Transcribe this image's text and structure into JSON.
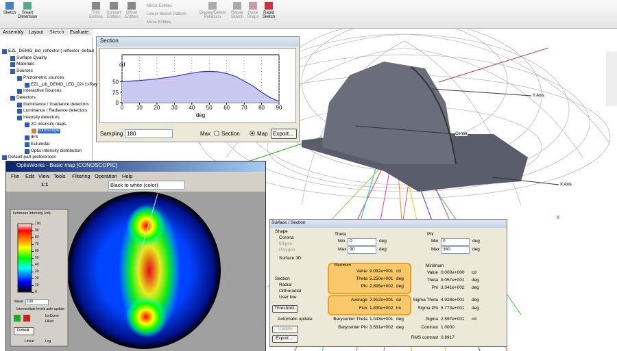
{
  "ribbon": {
    "buttons": [
      "Sketch",
      "Smart Dimension",
      "Trim Entities",
      "Convert Entities",
      "Offset Entities",
      "Display/Delete Relations",
      "Repair Sketch",
      "Quick Snaps",
      "Rapid Sketch"
    ],
    "small_buttons": [
      "Mirror Entities",
      "Linear Sketch Pattern",
      "Move Entities"
    ]
  },
  "tabs": [
    "Assembly",
    "Layout",
    "Sketch",
    "Evaluate"
  ],
  "tree": [
    "EZL_DEMO_led_reflector ( reflector_defaul",
    "Surface Quality",
    "Materials",
    "Sources",
    "Photometric sources",
    "EZL_Lib_DEMO_LED_02<1>Ray",
    "Interactive Sources",
    "Detectors",
    "Illuminance / Irradiance detectors",
    "Luminance / Radiance detectors",
    "Intensity detectors",
    "2D intensity maps",
    "conoscopic",
    "IES",
    "Eulumdat",
    "Optis intensity distribution",
    "Default part preferences"
  ],
  "viewport": {
    "labels": [
      "Y Axis",
      "Center",
      "X Axis"
    ]
  },
  "section_window": {
    "title": "Section",
    "chart": {
      "type": "line",
      "y_label": "cd",
      "x_label": "deg",
      "x": [
        0,
        5,
        10,
        15,
        20,
        25,
        30,
        35,
        40,
        45,
        50,
        55,
        60,
        65,
        70,
        75,
        80,
        85,
        90
      ],
      "values": [
        50,
        52,
        53,
        55,
        57,
        60,
        63,
        67,
        71,
        74,
        75,
        74,
        70,
        63,
        52,
        40,
        25,
        12,
        3
      ],
      "xlim": [
        0,
        90
      ],
      "ylim": [
        0,
        115
      ],
      "xticks": [
        0,
        10,
        20,
        30,
        40,
        50,
        60,
        70,
        80,
        90
      ],
      "yticks": [
        0,
        25,
        50
      ],
      "color": "#3333cc"
    },
    "sampling_label": "Sampling",
    "sampling_value": "180",
    "max_label": "Max",
    "options": [
      "Section",
      "Map"
    ],
    "export": "Export..."
  },
  "map_window": {
    "title": "OptisWorks - Basic map [CONOSCOPIC]",
    "menu": [
      "File",
      "Edit",
      "View",
      "Tools",
      "Filtering",
      "Operation",
      "Help"
    ],
    "zoom": "1:1",
    "palette": "Black to white (color)",
    "legend": {
      "title": "luminous intensity (cd)",
      "scale_lim": [
        0,
        100
      ],
      "scale_ticks": [
        0,
        10,
        20,
        30,
        40,
        50,
        60,
        70,
        80,
        90,
        100
      ],
      "value_label": "Value",
      "value": "100",
      "auto_update": "Intermediate levels auto-update",
      "isocurve": "IsoCurve",
      "filled": "Filled",
      "default": "Default",
      "linear": "Linear",
      "log": "Log"
    }
  },
  "surface_dialog": {
    "title": "Surface / Section",
    "shape_label": "Shape",
    "shapes": [
      "Corona",
      "Ellipse",
      "Polygon"
    ],
    "surface3d": "Surface 3D",
    "theta": {
      "label": "Theta",
      "min_label": "Min",
      "min": "0",
      "max_label": "Max",
      "max": "90",
      "unit": "deg"
    },
    "phi": {
      "label": "Phi",
      "min_label": "Min",
      "min": "0",
      "max_label": "Max",
      "max": "360",
      "unit": "deg"
    },
    "maximum": {
      "label": "Maximum",
      "rows": [
        [
          "Value",
          "9.092e+001",
          "cd"
        ],
        [
          "Theta",
          "5.250e+001",
          "deg"
        ],
        [
          "Phi",
          "2.895e+002",
          "deg"
        ]
      ]
    },
    "minimum": {
      "label": "Minimum",
      "rows": [
        [
          "Value",
          "0.000e+000",
          "cd"
        ],
        [
          "Theta",
          "9.057e+001",
          "deg"
        ],
        [
          "Phi",
          "3.341e+002",
          "deg"
        ]
      ]
    },
    "section_label": "Section",
    "sections": [
      "Radial",
      "Orthoradial",
      "User line"
    ],
    "threshold": "Threshold...",
    "stats": [
      [
        "Average",
        "2.912e+001",
        "cd"
      ],
      [
        "Flux",
        "1.830e+002",
        "lm"
      ]
    ],
    "sigmas": [
      [
        "Sigma Theta",
        "4.928e+001",
        "deg"
      ],
      [
        "Sigma Phi",
        "5.773e+001",
        "deg"
      ]
    ],
    "auto_update": "Automatic update",
    "update": "Update",
    "barycenter": [
      [
        "Barycenter Theta",
        "1.043e+001",
        "deg"
      ],
      [
        "Barycenter Phi",
        "3.581e+002",
        "deg"
      ]
    ],
    "sigma": [
      "Sigma",
      "2.597e+001",
      "cd"
    ],
    "contrast": [
      "Contrast",
      "1.0000"
    ],
    "export": "Export ...",
    "rms": [
      "RMS contrast",
      "0.8917"
    ]
  }
}
